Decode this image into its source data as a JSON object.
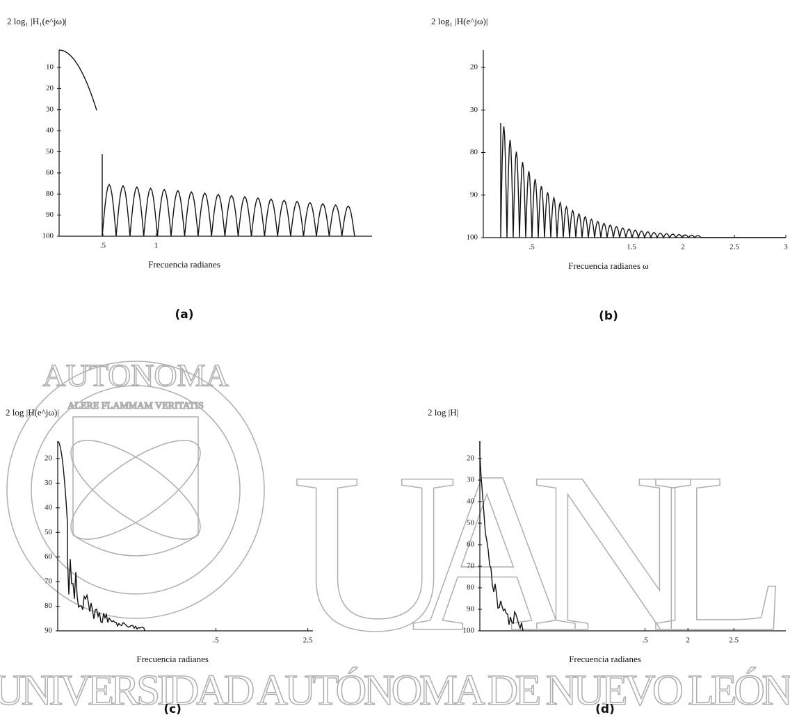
{
  "panels": [
    {
      "y_label": "2 log₁ |H₁(e^jω)|",
      "y_ticks": [
        "10",
        "20",
        "30",
        "40",
        "50",
        "60",
        "80",
        "90",
        "100"
      ],
      "x_ticks": [
        ".5",
        "1"
      ],
      "x_label": "Frecuencia radianes",
      "caption": "(a)"
    },
    {
      "y_label": "2 log₁ |H(e^jω)|",
      "y_ticks": [
        "20",
        "30",
        "80",
        "90",
        "100"
      ],
      "x_ticks": [
        ".5",
        "1.5",
        "2",
        "2.5",
        "3"
      ],
      "x_label": "Frecuencia radianes ω",
      "caption": "(b)"
    },
    {
      "y_label": "2 log |H(e^jω)|",
      "y_ticks": [
        "20",
        "30",
        "40",
        "50",
        "60",
        "70",
        "80",
        "90"
      ],
      "x_ticks": [
        ".5",
        "2.5"
      ],
      "x_label": "Frecuencia radianes",
      "caption": "(c)"
    },
    {
      "y_label": "2 log |H|",
      "y_ticks": [
        "20",
        "30",
        "40",
        "50",
        "60",
        "70",
        "80",
        "90",
        "100"
      ],
      "x_ticks": [
        ".5",
        "2",
        "2.5"
      ],
      "x_label": "Frecuencia radianes",
      "caption": "(d)"
    }
  ],
  "watermark": {
    "letters": "UANL",
    "university": "UNIVERSIDAD AUTÓNOMA DE NUEVO LEÓN",
    "seal_top": "AUTONOMA",
    "motto": "ALERE FLAMMAM VERITATIS"
  }
}
